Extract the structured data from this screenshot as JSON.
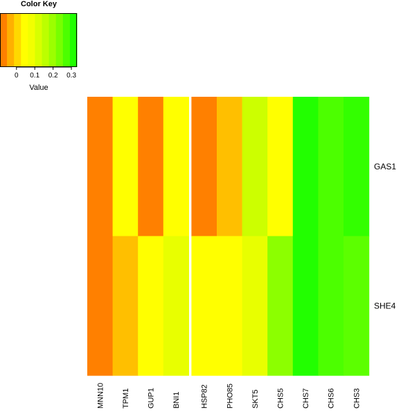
{
  "chart_data": {
    "type": "heatmap",
    "color_key": {
      "title": "Color Key",
      "xlabel": "Value",
      "range": [
        -0.09,
        0.33
      ],
      "ticks": [
        "0",
        "0.1",
        "0.2",
        "0.3"
      ],
      "tick_values": [
        0,
        0.1,
        0.2,
        0.3
      ],
      "colors": [
        "#ff8000",
        "#ffb000",
        "#ffd800",
        "#ffff00",
        "#f2ff00",
        "#d8ff00",
        "#bcff00",
        "#9cff00",
        "#78ff00",
        "#4cff00",
        "#20ff00"
      ]
    },
    "columns": [
      "MNN10",
      "TPM1",
      "GUP1",
      "BNI1",
      "HSP82",
      "PHO85",
      "SKT5",
      "CHS5",
      "CHS7",
      "CHS6",
      "CHS3"
    ],
    "column_group_break_after": "BNI1",
    "rows": [
      "GAS1",
      "SHE4"
    ],
    "cell_colors": [
      [
        "#ff8000",
        "#ffff00",
        "#ff8000",
        "#ffff00",
        "#ff8000",
        "#ffbf00",
        "#ccff00",
        "#ffff00",
        "#22ff00",
        "#4cff00",
        "#33ff00"
      ],
      [
        "#ff8000",
        "#ffbf00",
        "#ffff00",
        "#e8ff00",
        "#ffff00",
        "#ffff00",
        "#e8ff00",
        "#8cff00",
        "#22ff00",
        "#4cff00",
        "#5cff00"
      ]
    ]
  }
}
